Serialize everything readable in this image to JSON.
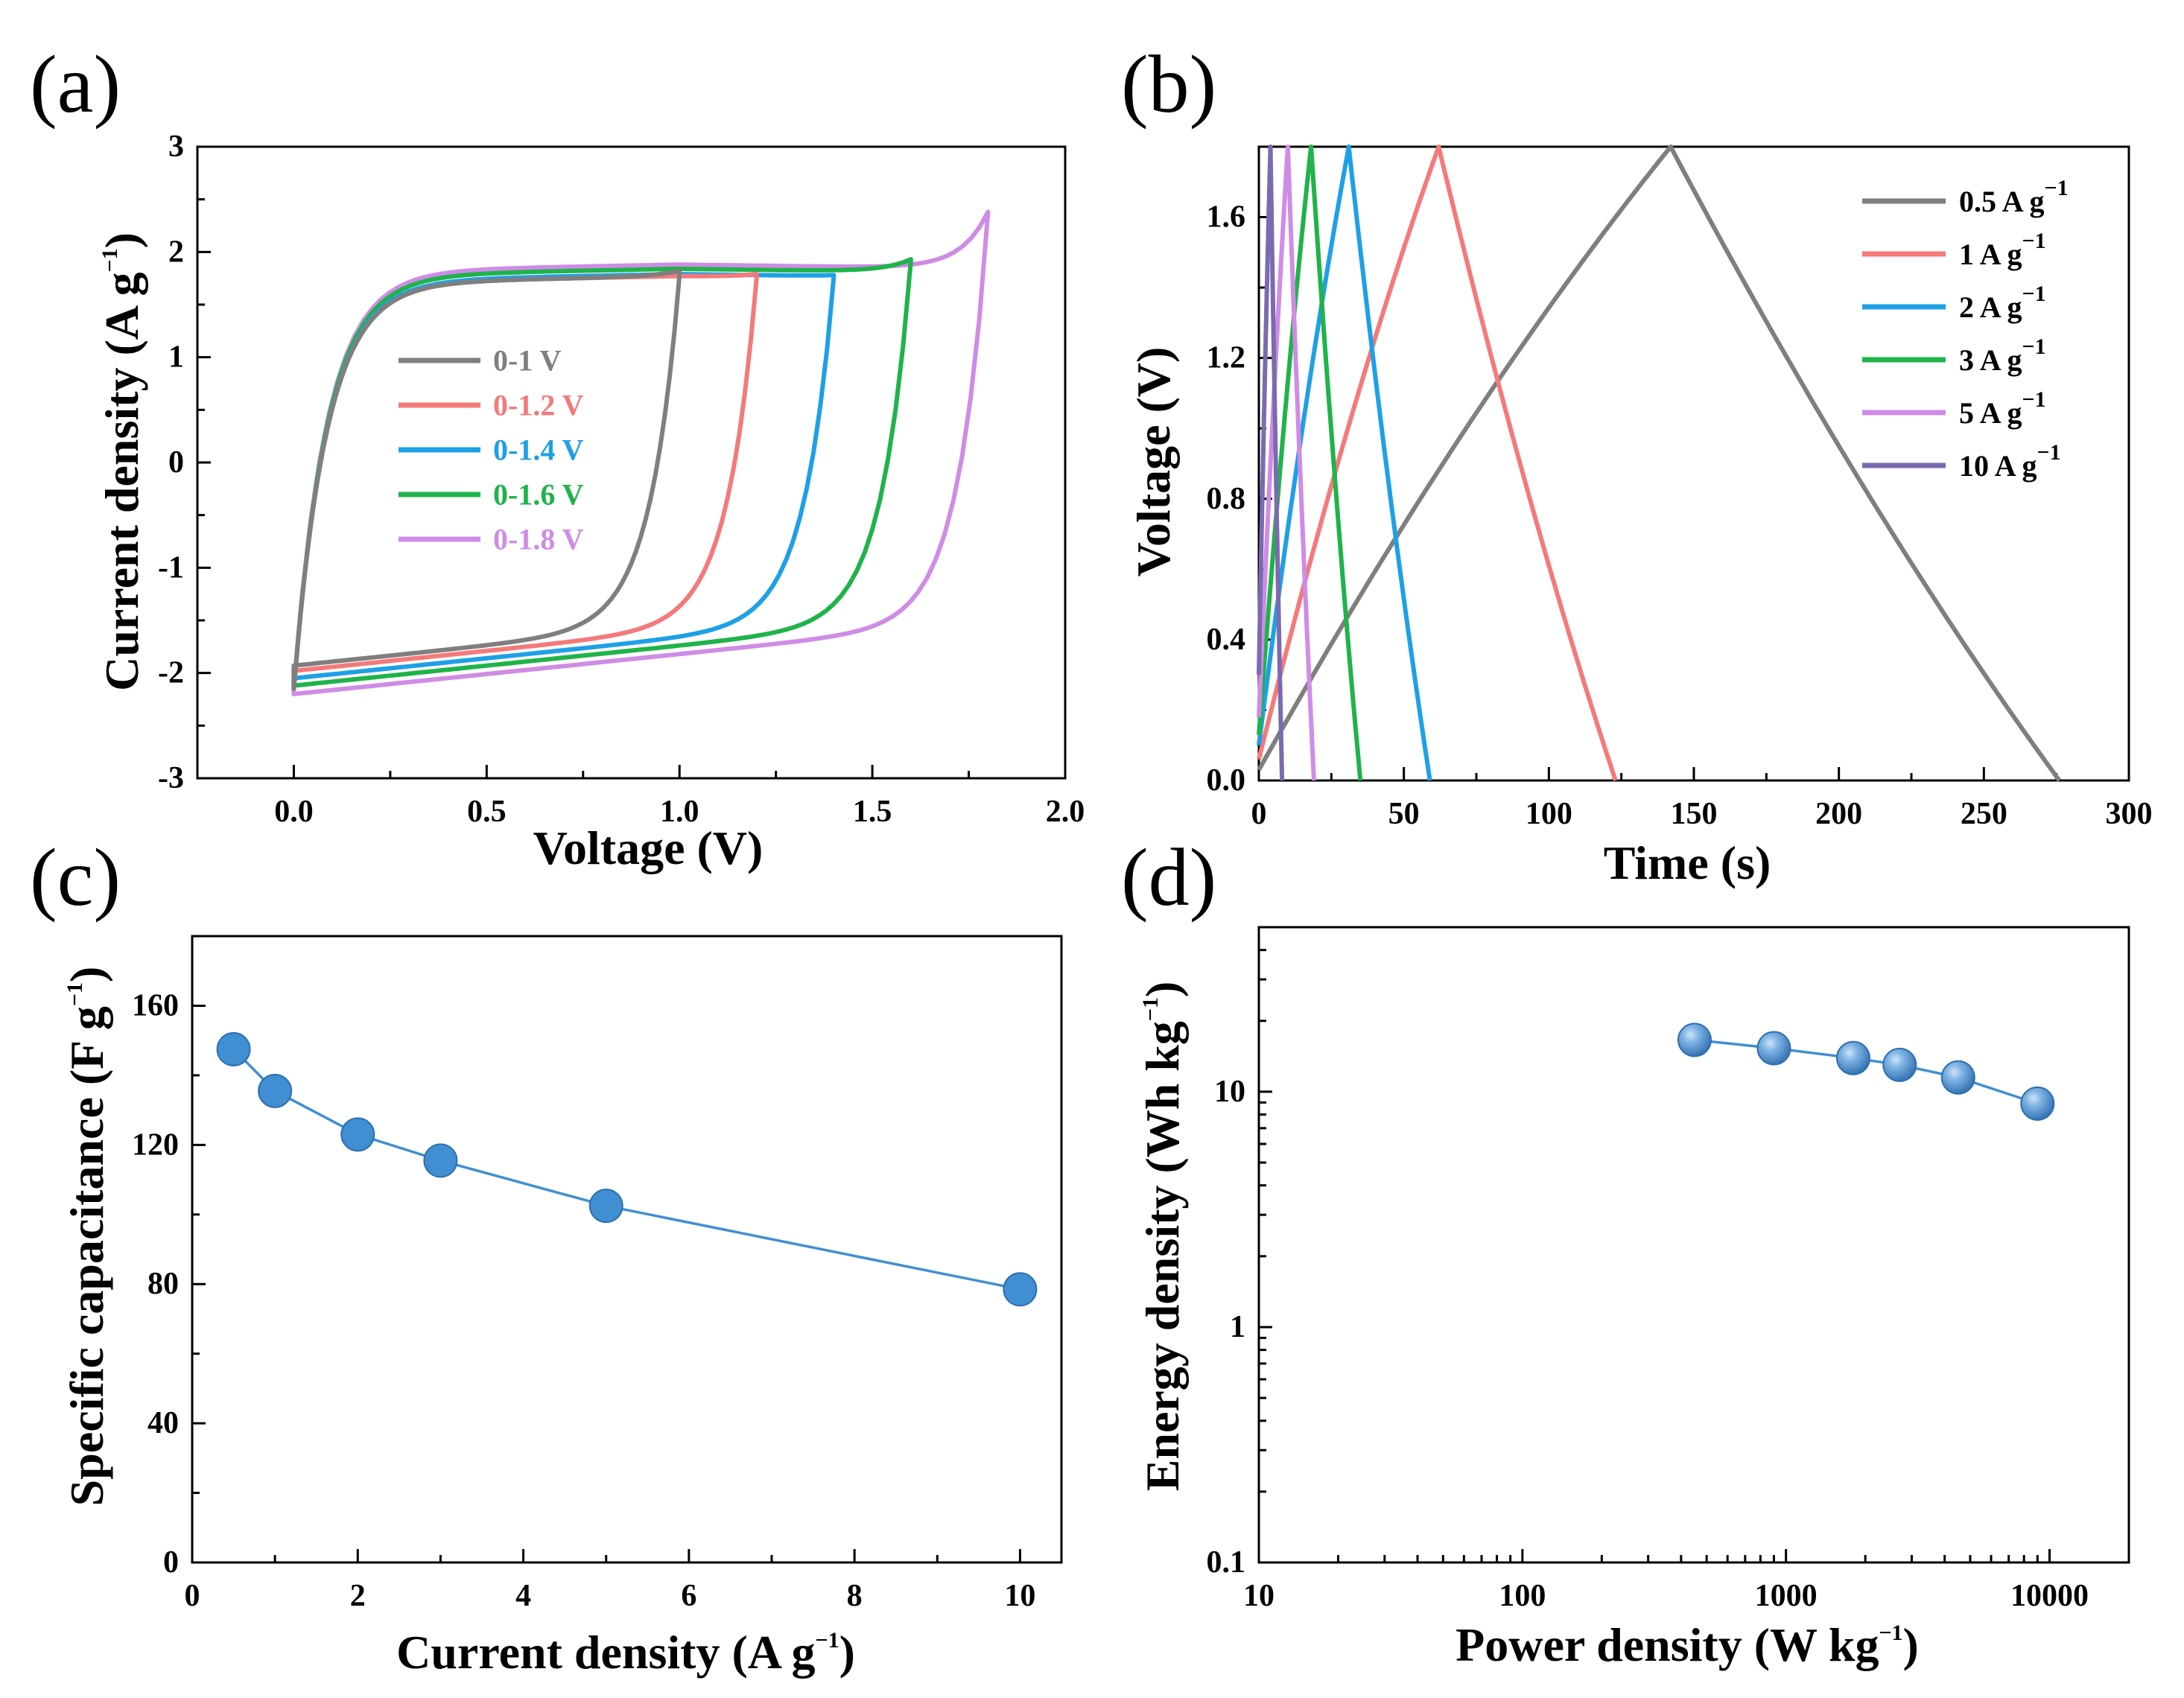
{
  "chart_data": [
    {
      "panel": "(a)",
      "type": "line",
      "xlabel": "Voltage (V)",
      "ylabel": "Current density (A g",
      "ylabel_sup": "−1",
      "ylabel_end": ")",
      "xlim": [
        -0.25,
        2.0
      ],
      "ylim": [
        -3,
        3
      ],
      "xticks": [
        "0.0",
        "0.5",
        "1.0",
        "1.5",
        "2.0"
      ],
      "yticks": [
        "-3",
        "-2",
        "-1",
        "0",
        "1",
        "2",
        "3"
      ],
      "series": [
        {
          "name": "0-1 V",
          "color": "#7f7f7f",
          "vmax": 1.0,
          "i_top": 1.75,
          "i_end": 1.78,
          "i_start_low": -1.93,
          "i_end_low": -0.95
        },
        {
          "name": "0-1.2 V",
          "color": "#f47a7a",
          "vmax": 1.2,
          "i_top": 1.75,
          "i_end": 1.76,
          "i_start_low": -1.98,
          "i_end_low": -1.0
        },
        {
          "name": "0-1.4 V",
          "color": "#1ea0e6",
          "vmax": 1.4,
          "i_top": 1.77,
          "i_end": 1.76,
          "i_start_low": -2.05,
          "i_end_low": -1.05
        },
        {
          "name": "0-1.6 V",
          "color": "#1fb34a",
          "vmax": 1.6,
          "i_top": 1.82,
          "i_end": 1.92,
          "i_start_low": -2.12,
          "i_end_low": -1.0
        },
        {
          "name": "0-1.8 V",
          "color": "#cf8ce6",
          "vmax": 1.8,
          "i_top": 1.86,
          "i_end": 2.38,
          "i_start_low": -2.2,
          "i_end_low": -0.9
        }
      ]
    },
    {
      "panel": "(b)",
      "type": "line",
      "xlabel": "Time (s)",
      "ylabel": "Voltage (V)",
      "xlim": [
        0,
        300
      ],
      "ylim": [
        0,
        1.8
      ],
      "xticks": [
        "0",
        "50",
        "100",
        "150",
        "200",
        "250",
        "300"
      ],
      "yticks": [
        "0.0",
        "0.4",
        "0.8",
        "1.2",
        "1.6"
      ],
      "series": [
        {
          "name": "0.5 A g",
          "sup": "−1",
          "color": "#7f7f7f",
          "t_peak": 142,
          "t_end": 276,
          "v_start": 0.03
        },
        {
          "name": "1 A g",
          "sup": "−1",
          "color": "#f47a7a",
          "t_peak": 62,
          "t_end": 123,
          "v_start": 0.06
        },
        {
          "name": "2 A g",
          "sup": "−1",
          "color": "#1ea0e6",
          "t_peak": 31,
          "t_end": 59,
          "v_start": 0.1
        },
        {
          "name": "3 A g",
          "sup": "−1",
          "color": "#1fb34a",
          "t_peak": 18,
          "t_end": 35,
          "v_start": 0.13
        },
        {
          "name": "5 A g",
          "sup": "−1",
          "color": "#cf8ce6",
          "t_peak": 10,
          "t_end": 19,
          "v_start": 0.18
        },
        {
          "name": "10 A g",
          "sup": "−1",
          "color": "#7c6ab0",
          "t_peak": 4,
          "t_end": 8,
          "v_start": 0.3
        }
      ]
    },
    {
      "panel": "(c)",
      "type": "scatter",
      "xlabel": "Current density (A g",
      "xlabel_sup": "−1",
      "xlabel_end": ")",
      "ylabel": "Specific capacitance (F g",
      "ylabel_sup": "−1",
      "ylabel_end": ")",
      "xlim": [
        0,
        10.5
      ],
      "ylim": [
        0,
        180
      ],
      "xticks": [
        "0",
        "2",
        "4",
        "6",
        "8",
        "10"
      ],
      "yticks": [
        "0",
        "40",
        "80",
        "120",
        "160"
      ],
      "color": "#3f8fd2",
      "x": [
        0.5,
        1,
        2,
        3,
        5,
        10
      ],
      "y": [
        147.5,
        135.5,
        123,
        115.5,
        102.5,
        78.5
      ]
    },
    {
      "panel": "(d)",
      "type": "scatter",
      "xlabel": "Power density (W kg",
      "xlabel_sup": "−1",
      "xlabel_end": ")",
      "ylabel": "Energy density (Wh kg",
      "ylabel_sup": "−1",
      "ylabel_end": ")",
      "xscale": "log",
      "yscale": "log",
      "xlim": [
        10,
        20000
      ],
      "ylim": [
        0.1,
        50
      ],
      "xticks": [
        "10",
        "100",
        "1000",
        "10000"
      ],
      "yticks": [
        "0.1",
        "1",
        "10"
      ],
      "color": "#3f8fd2",
      "x": [
        450,
        900,
        1800,
        2700,
        4500,
        9000
      ],
      "y": [
        16.6,
        15.3,
        13.9,
        13.0,
        11.5,
        8.9
      ]
    }
  ]
}
